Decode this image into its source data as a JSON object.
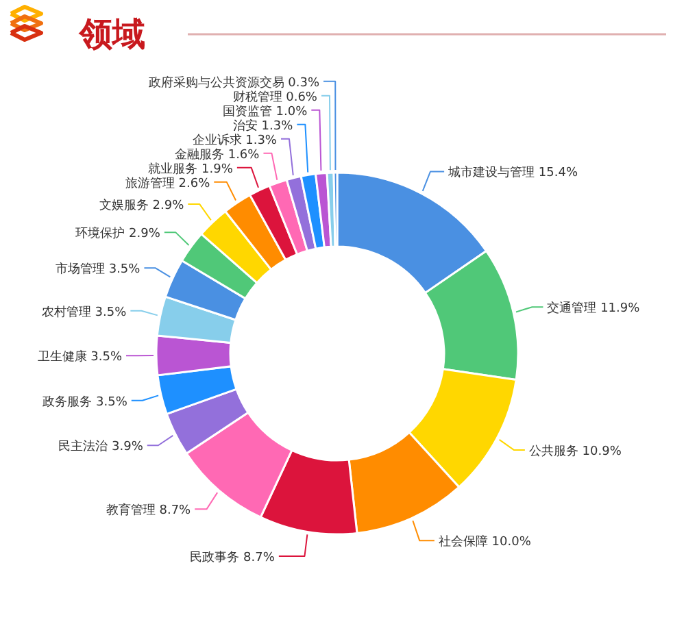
{
  "chart_data": {
    "type": "donut",
    "title": "领域",
    "categories": [
      "城市建设与管理",
      "交通管理",
      "公共服务",
      "社会保障",
      "民政事务",
      "教育管理",
      "民主法治",
      "政务服务",
      "卫生健康",
      "农村管理",
      "市场管理",
      "环境保护",
      "文娱服务",
      "旅游管理",
      "就业服务",
      "金融服务",
      "企业诉求",
      "治安",
      "国资监管",
      "财税管理",
      "政府采购与公共资源交易"
    ],
    "values": [
      15.4,
      11.9,
      10.9,
      10.0,
      8.7,
      8.7,
      3.9,
      3.5,
      3.5,
      3.5,
      3.5,
      2.9,
      2.9,
      2.6,
      1.9,
      1.6,
      1.3,
      1.3,
      1.0,
      0.6,
      0.3
    ],
    "value_labels": [
      "15.4%",
      "11.9%",
      "10.9%",
      "10.0%",
      "8.7%",
      "8.7%",
      "3.9%",
      "3.5%",
      "3.5%",
      "3.5%",
      "3.5%",
      "2.9%",
      "2.9%",
      "2.6%",
      "1.9%",
      "1.6%",
      "1.3%",
      "1.3%",
      "1.0%",
      "0.6%",
      "0.3%"
    ],
    "colors": [
      "#4a90e2",
      "#50c878",
      "#ffd700",
      "#ff8c00",
      "#dc143c",
      "#ff69b4",
      "#9370db",
      "#1e90ff",
      "#ba55d3",
      "#87ceeb",
      "#4a90e2",
      "#50c878",
      "#ffd700",
      "#ff8c00",
      "#dc143c",
      "#ff69b4",
      "#9370db",
      "#1e90ff",
      "#ba55d3",
      "#87ceeb",
      "#4a90e2"
    ]
  }
}
